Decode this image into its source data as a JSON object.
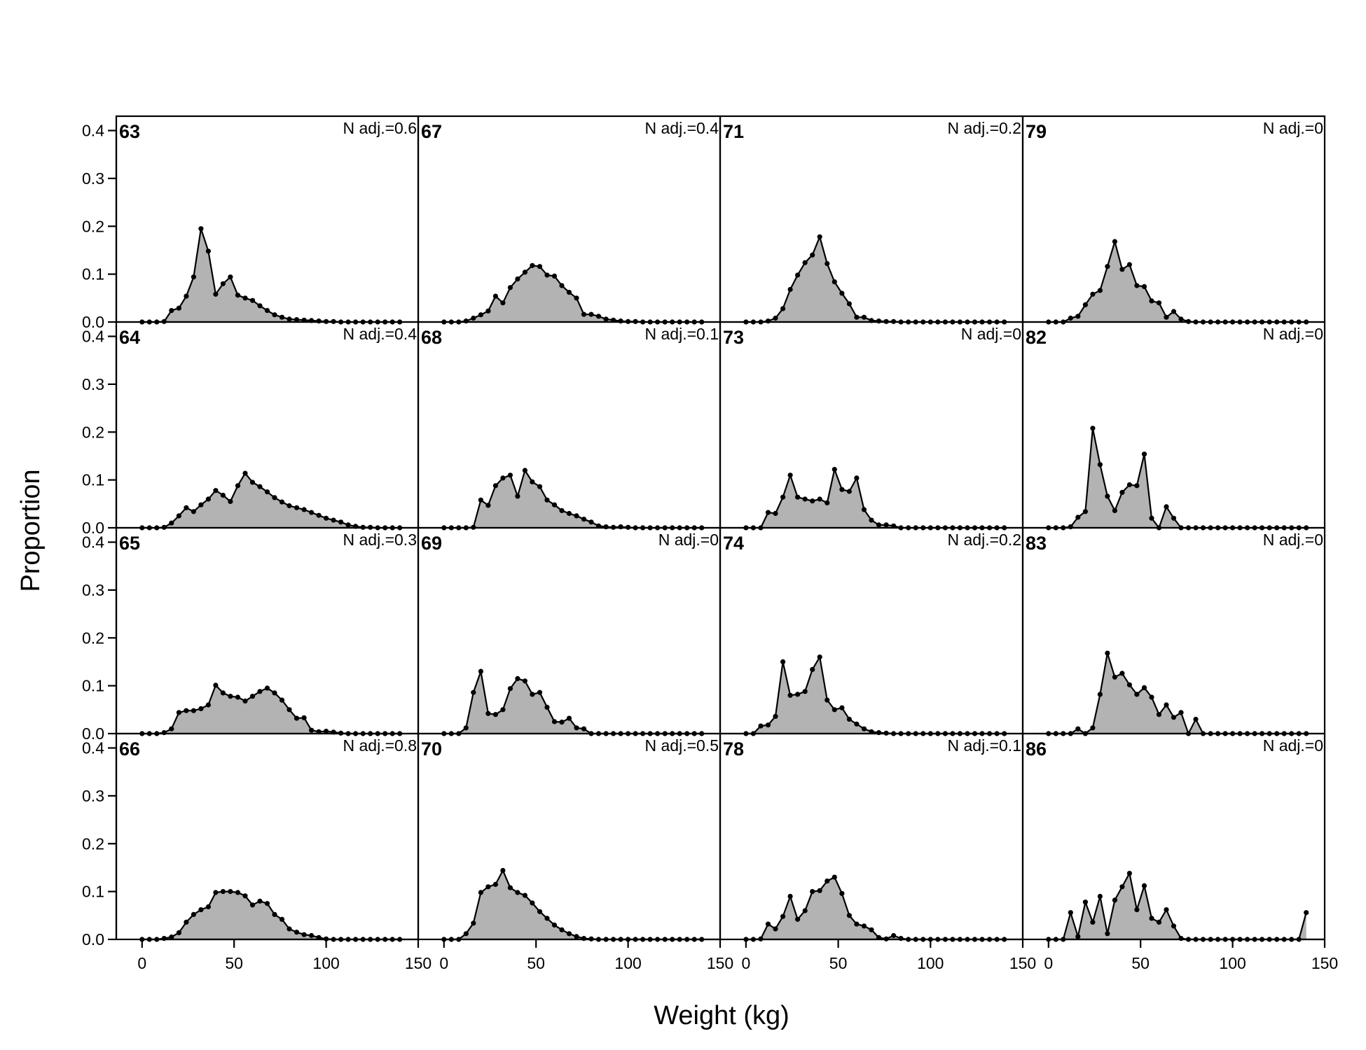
{
  "chart_data": {
    "type": "area",
    "xlabel": "Weight (kg)",
    "ylabel": "Proportion",
    "xlim": [
      -14,
      150
    ],
    "ylim": [
      0,
      0.43
    ],
    "xticks": [
      0,
      50,
      100,
      150
    ],
    "yticks": [
      0.0,
      0.1,
      0.2,
      0.3,
      0.4
    ],
    "ytick_labels": [
      "0.0",
      "0.1",
      "0.2",
      "0.3",
      "0.4"
    ],
    "grid": false,
    "layout": "4x4 panels, columns read top-to-bottom",
    "colors": {
      "fill": "#b3b3b3",
      "line": "#000000"
    },
    "x": [
      0,
      4,
      8,
      12,
      16,
      20,
      24,
      28,
      32,
      36,
      40,
      44,
      48,
      52,
      56,
      60,
      64,
      68,
      72,
      76,
      80,
      84,
      88,
      92,
      96,
      100,
      104,
      108,
      112,
      116,
      120,
      124,
      128,
      132,
      136,
      140
    ],
    "panels": [
      {
        "id": "63",
        "note": "N adj.=0.6",
        "values": [
          0,
          0,
          0,
          0.001,
          0.024,
          0.029,
          0.054,
          0.094,
          0.195,
          0.148,
          0.058,
          0.08,
          0.094,
          0.056,
          0.05,
          0.045,
          0.034,
          0.024,
          0.015,
          0.01,
          0.006,
          0.005,
          0.004,
          0.003,
          0.002,
          0.001,
          0.001,
          0,
          0,
          0,
          0,
          0,
          0,
          0,
          0,
          0
        ]
      },
      {
        "id": "64",
        "note": "N adj.=0.4",
        "values": [
          0,
          0,
          0,
          0.001,
          0.01,
          0.025,
          0.042,
          0.034,
          0.048,
          0.06,
          0.078,
          0.068,
          0.055,
          0.088,
          0.114,
          0.095,
          0.086,
          0.075,
          0.063,
          0.054,
          0.046,
          0.042,
          0.038,
          0.032,
          0.026,
          0.02,
          0.016,
          0.012,
          0.006,
          0.003,
          0.001,
          0.001,
          0,
          0,
          0,
          0
        ]
      },
      {
        "id": "65",
        "note": "N adj.=0.3",
        "values": [
          0,
          0,
          0,
          0.002,
          0.01,
          0.044,
          0.048,
          0.048,
          0.052,
          0.06,
          0.101,
          0.085,
          0.078,
          0.076,
          0.068,
          0.078,
          0.088,
          0.095,
          0.085,
          0.07,
          0.05,
          0.032,
          0.033,
          0.007,
          0.004,
          0.005,
          0.003,
          0.001,
          0,
          0,
          0,
          0,
          0,
          0,
          0,
          0
        ]
      },
      {
        "id": "66",
        "note": "N adj.=0.8",
        "values": [
          0,
          0,
          0,
          0.002,
          0.005,
          0.014,
          0.036,
          0.052,
          0.062,
          0.068,
          0.098,
          0.1,
          0.1,
          0.098,
          0.091,
          0.072,
          0.08,
          0.075,
          0.052,
          0.042,
          0.022,
          0.015,
          0.01,
          0.008,
          0.004,
          0.001,
          0,
          0,
          0,
          0,
          0,
          0,
          0,
          0,
          0,
          0
        ]
      },
      {
        "id": "67",
        "note": "N adj.=0.4",
        "values": [
          0,
          0,
          0,
          0.002,
          0.008,
          0.015,
          0.023,
          0.054,
          0.04,
          0.072,
          0.09,
          0.104,
          0.118,
          0.116,
          0.098,
          0.096,
          0.076,
          0.062,
          0.05,
          0.016,
          0.016,
          0.012,
          0.006,
          0.004,
          0.002,
          0.001,
          0.001,
          0,
          0,
          0,
          0,
          0,
          0,
          0,
          0,
          0
        ]
      },
      {
        "id": "68",
        "note": "N adj.=0.1",
        "values": [
          0,
          0,
          0,
          0,
          0.001,
          0.058,
          0.047,
          0.088,
          0.104,
          0.11,
          0.066,
          0.12,
          0.096,
          0.086,
          0.058,
          0.048,
          0.036,
          0.03,
          0.025,
          0.018,
          0.012,
          0.004,
          0.002,
          0.001,
          0.002,
          0.001,
          0,
          0,
          0,
          0,
          0,
          0,
          0,
          0,
          0,
          0
        ]
      },
      {
        "id": "69",
        "note": "N adj.=0",
        "values": [
          0,
          0,
          0,
          0.012,
          0.086,
          0.13,
          0.042,
          0.04,
          0.05,
          0.094,
          0.115,
          0.11,
          0.082,
          0.086,
          0.055,
          0.025,
          0.024,
          0.032,
          0.012,
          0.01,
          0,
          0,
          0,
          0,
          0,
          0,
          0,
          0,
          0,
          0,
          0,
          0,
          0,
          0,
          0,
          0
        ]
      },
      {
        "id": "70",
        "note": "N adj.=0.5",
        "values": [
          0,
          0,
          0,
          0.012,
          0.034,
          0.098,
          0.11,
          0.115,
          0.144,
          0.108,
          0.098,
          0.092,
          0.076,
          0.058,
          0.044,
          0.03,
          0.02,
          0.012,
          0.006,
          0.002,
          0.001,
          0,
          0,
          0,
          0,
          0,
          0,
          0,
          0,
          0,
          0,
          0,
          0,
          0,
          0,
          0
        ]
      },
      {
        "id": "71",
        "note": "N adj.=0.2",
        "values": [
          0,
          0,
          0,
          0.002,
          0.008,
          0.028,
          0.068,
          0.098,
          0.124,
          0.14,
          0.178,
          0.122,
          0.084,
          0.06,
          0.038,
          0.01,
          0.01,
          0.003,
          0.002,
          0.001,
          0.001,
          0,
          0,
          0,
          0,
          0,
          0,
          0,
          0,
          0,
          0,
          0,
          0,
          0,
          0,
          0
        ]
      },
      {
        "id": "73",
        "note": "N adj.=0",
        "values": [
          0,
          0,
          0,
          0.032,
          0.03,
          0.064,
          0.11,
          0.064,
          0.06,
          0.056,
          0.06,
          0.052,
          0.122,
          0.08,
          0.076,
          0.104,
          0.038,
          0.016,
          0.006,
          0.006,
          0.004,
          0,
          0,
          0,
          0,
          0,
          0,
          0,
          0,
          0,
          0,
          0,
          0,
          0,
          0,
          0
        ]
      },
      {
        "id": "74",
        "note": "N adj.=0.2",
        "values": [
          0,
          0,
          0.016,
          0.018,
          0.036,
          0.15,
          0.08,
          0.082,
          0.088,
          0.134,
          0.16,
          0.07,
          0.05,
          0.054,
          0.03,
          0.02,
          0.01,
          0.004,
          0.002,
          0.001,
          0,
          0,
          0,
          0,
          0,
          0,
          0,
          0,
          0,
          0,
          0,
          0,
          0,
          0,
          0,
          0
        ]
      },
      {
        "id": "78",
        "note": "N adj.=0.1",
        "values": [
          0,
          0,
          0.001,
          0.032,
          0.022,
          0.048,
          0.09,
          0.042,
          0.06,
          0.1,
          0.102,
          0.122,
          0.13,
          0.096,
          0.05,
          0.032,
          0.028,
          0.02,
          0.004,
          0.001,
          0.008,
          0.002,
          0,
          0,
          0,
          0,
          0,
          0,
          0,
          0,
          0,
          0,
          0,
          0,
          0,
          0
        ]
      },
      {
        "id": "79",
        "note": "N adj.=0",
        "values": [
          0,
          0,
          0,
          0.008,
          0.012,
          0.036,
          0.058,
          0.066,
          0.116,
          0.168,
          0.11,
          0.12,
          0.076,
          0.074,
          0.044,
          0.04,
          0.01,
          0.022,
          0.006,
          0.001,
          0,
          0,
          0,
          0,
          0,
          0,
          0,
          0,
          0,
          0,
          0,
          0,
          0,
          0,
          0,
          0
        ]
      },
      {
        "id": "82",
        "note": "N adj.=0",
        "values": [
          0,
          0,
          0,
          0.002,
          0.022,
          0.034,
          0.208,
          0.132,
          0.066,
          0.036,
          0.074,
          0.09,
          0.088,
          0.154,
          0.02,
          0,
          0.044,
          0.02,
          0,
          0,
          0,
          0,
          0,
          0,
          0,
          0,
          0,
          0,
          0,
          0,
          0,
          0,
          0,
          0,
          0,
          0
        ]
      },
      {
        "id": "83",
        "note": "N adj.=0",
        "values": [
          0,
          0,
          0,
          0,
          0.01,
          0,
          0.012,
          0.082,
          0.168,
          0.118,
          0.126,
          0.102,
          0.082,
          0.096,
          0.076,
          0.04,
          0.06,
          0.034,
          0.044,
          0,
          0.03,
          0,
          0,
          0,
          0,
          0,
          0,
          0,
          0,
          0,
          0,
          0,
          0,
          0,
          0,
          0
        ]
      },
      {
        "id": "86",
        "note": "N adj.=0",
        "values": [
          0,
          0,
          0,
          0.056,
          0.006,
          0.078,
          0.036,
          0.09,
          0.012,
          0.082,
          0.11,
          0.138,
          0.062,
          0.112,
          0.044,
          0.036,
          0.062,
          0.028,
          0.002,
          0,
          0,
          0,
          0,
          0,
          0,
          0,
          0,
          0,
          0,
          0,
          0,
          0,
          0,
          0,
          0,
          0.056
        ]
      }
    ]
  }
}
